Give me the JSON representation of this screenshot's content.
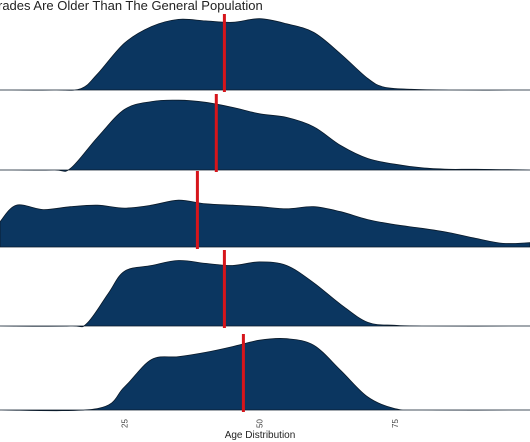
{
  "chart_data": {
    "type": "area",
    "subtype": "ridgeline",
    "title": "rades Are Older Than The General Population",
    "xlabel": "Age Distribution",
    "ylabel": "",
    "xlim": [
      2,
      100
    ],
    "x_ticks": [
      25,
      50,
      75
    ],
    "x_tick_labels": [
      "25",
      "50",
      "75"
    ],
    "grid": false,
    "legend": "none",
    "fill_color": "#0b3660",
    "marker_color": "#d6151b",
    "series": [
      {
        "mean": 43.5,
        "x": [
          2,
          12,
          17,
          20,
          25,
          30,
          35,
          40,
          45,
          50,
          55,
          60,
          65,
          70,
          73,
          78,
          85,
          100
        ],
        "density": [
          0,
          0,
          0.02,
          0.22,
          0.65,
          0.88,
          0.98,
          0.96,
          0.94,
          0.99,
          0.92,
          0.8,
          0.5,
          0.16,
          0.04,
          0.01,
          0,
          0
        ]
      },
      {
        "mean": 42,
        "x": [
          2,
          12,
          15,
          20,
          25,
          30,
          35,
          40,
          45,
          50,
          55,
          60,
          65,
          70,
          75,
          80,
          85,
          90,
          100
        ],
        "density": [
          0,
          0,
          0.02,
          0.45,
          0.84,
          0.95,
          0.97,
          0.94,
          0.87,
          0.78,
          0.73,
          0.6,
          0.34,
          0.16,
          0.08,
          0.03,
          0.01,
          0.01,
          0
        ]
      },
      {
        "mean": 38.5,
        "x": [
          2,
          5,
          10,
          15,
          20,
          25,
          30,
          35,
          40,
          45,
          50,
          55,
          60,
          65,
          70,
          75,
          80,
          85,
          90,
          95,
          100
        ],
        "density": [
          0.35,
          0.58,
          0.52,
          0.56,
          0.58,
          0.54,
          0.58,
          0.65,
          0.6,
          0.58,
          0.56,
          0.53,
          0.56,
          0.49,
          0.38,
          0.31,
          0.26,
          0.2,
          0.12,
          0.05,
          0.06
        ]
      },
      {
        "mean": 43.5,
        "x": [
          2,
          15,
          18,
          22,
          25,
          30,
          35,
          40,
          45,
          50,
          55,
          60,
          65,
          70,
          75,
          80,
          100
        ],
        "density": [
          0,
          0,
          0.03,
          0.45,
          0.76,
          0.84,
          0.91,
          0.87,
          0.84,
          0.89,
          0.84,
          0.6,
          0.3,
          0.05,
          0.01,
          0,
          0
        ]
      },
      {
        "mean": 47,
        "x": [
          2,
          20,
          25,
          30,
          35,
          40,
          45,
          50,
          55,
          60,
          65,
          70,
          75,
          80,
          100
        ],
        "density": [
          0,
          0.02,
          0.32,
          0.7,
          0.74,
          0.8,
          0.88,
          0.97,
          0.99,
          0.9,
          0.55,
          0.18,
          0.02,
          0,
          0
        ]
      }
    ]
  }
}
